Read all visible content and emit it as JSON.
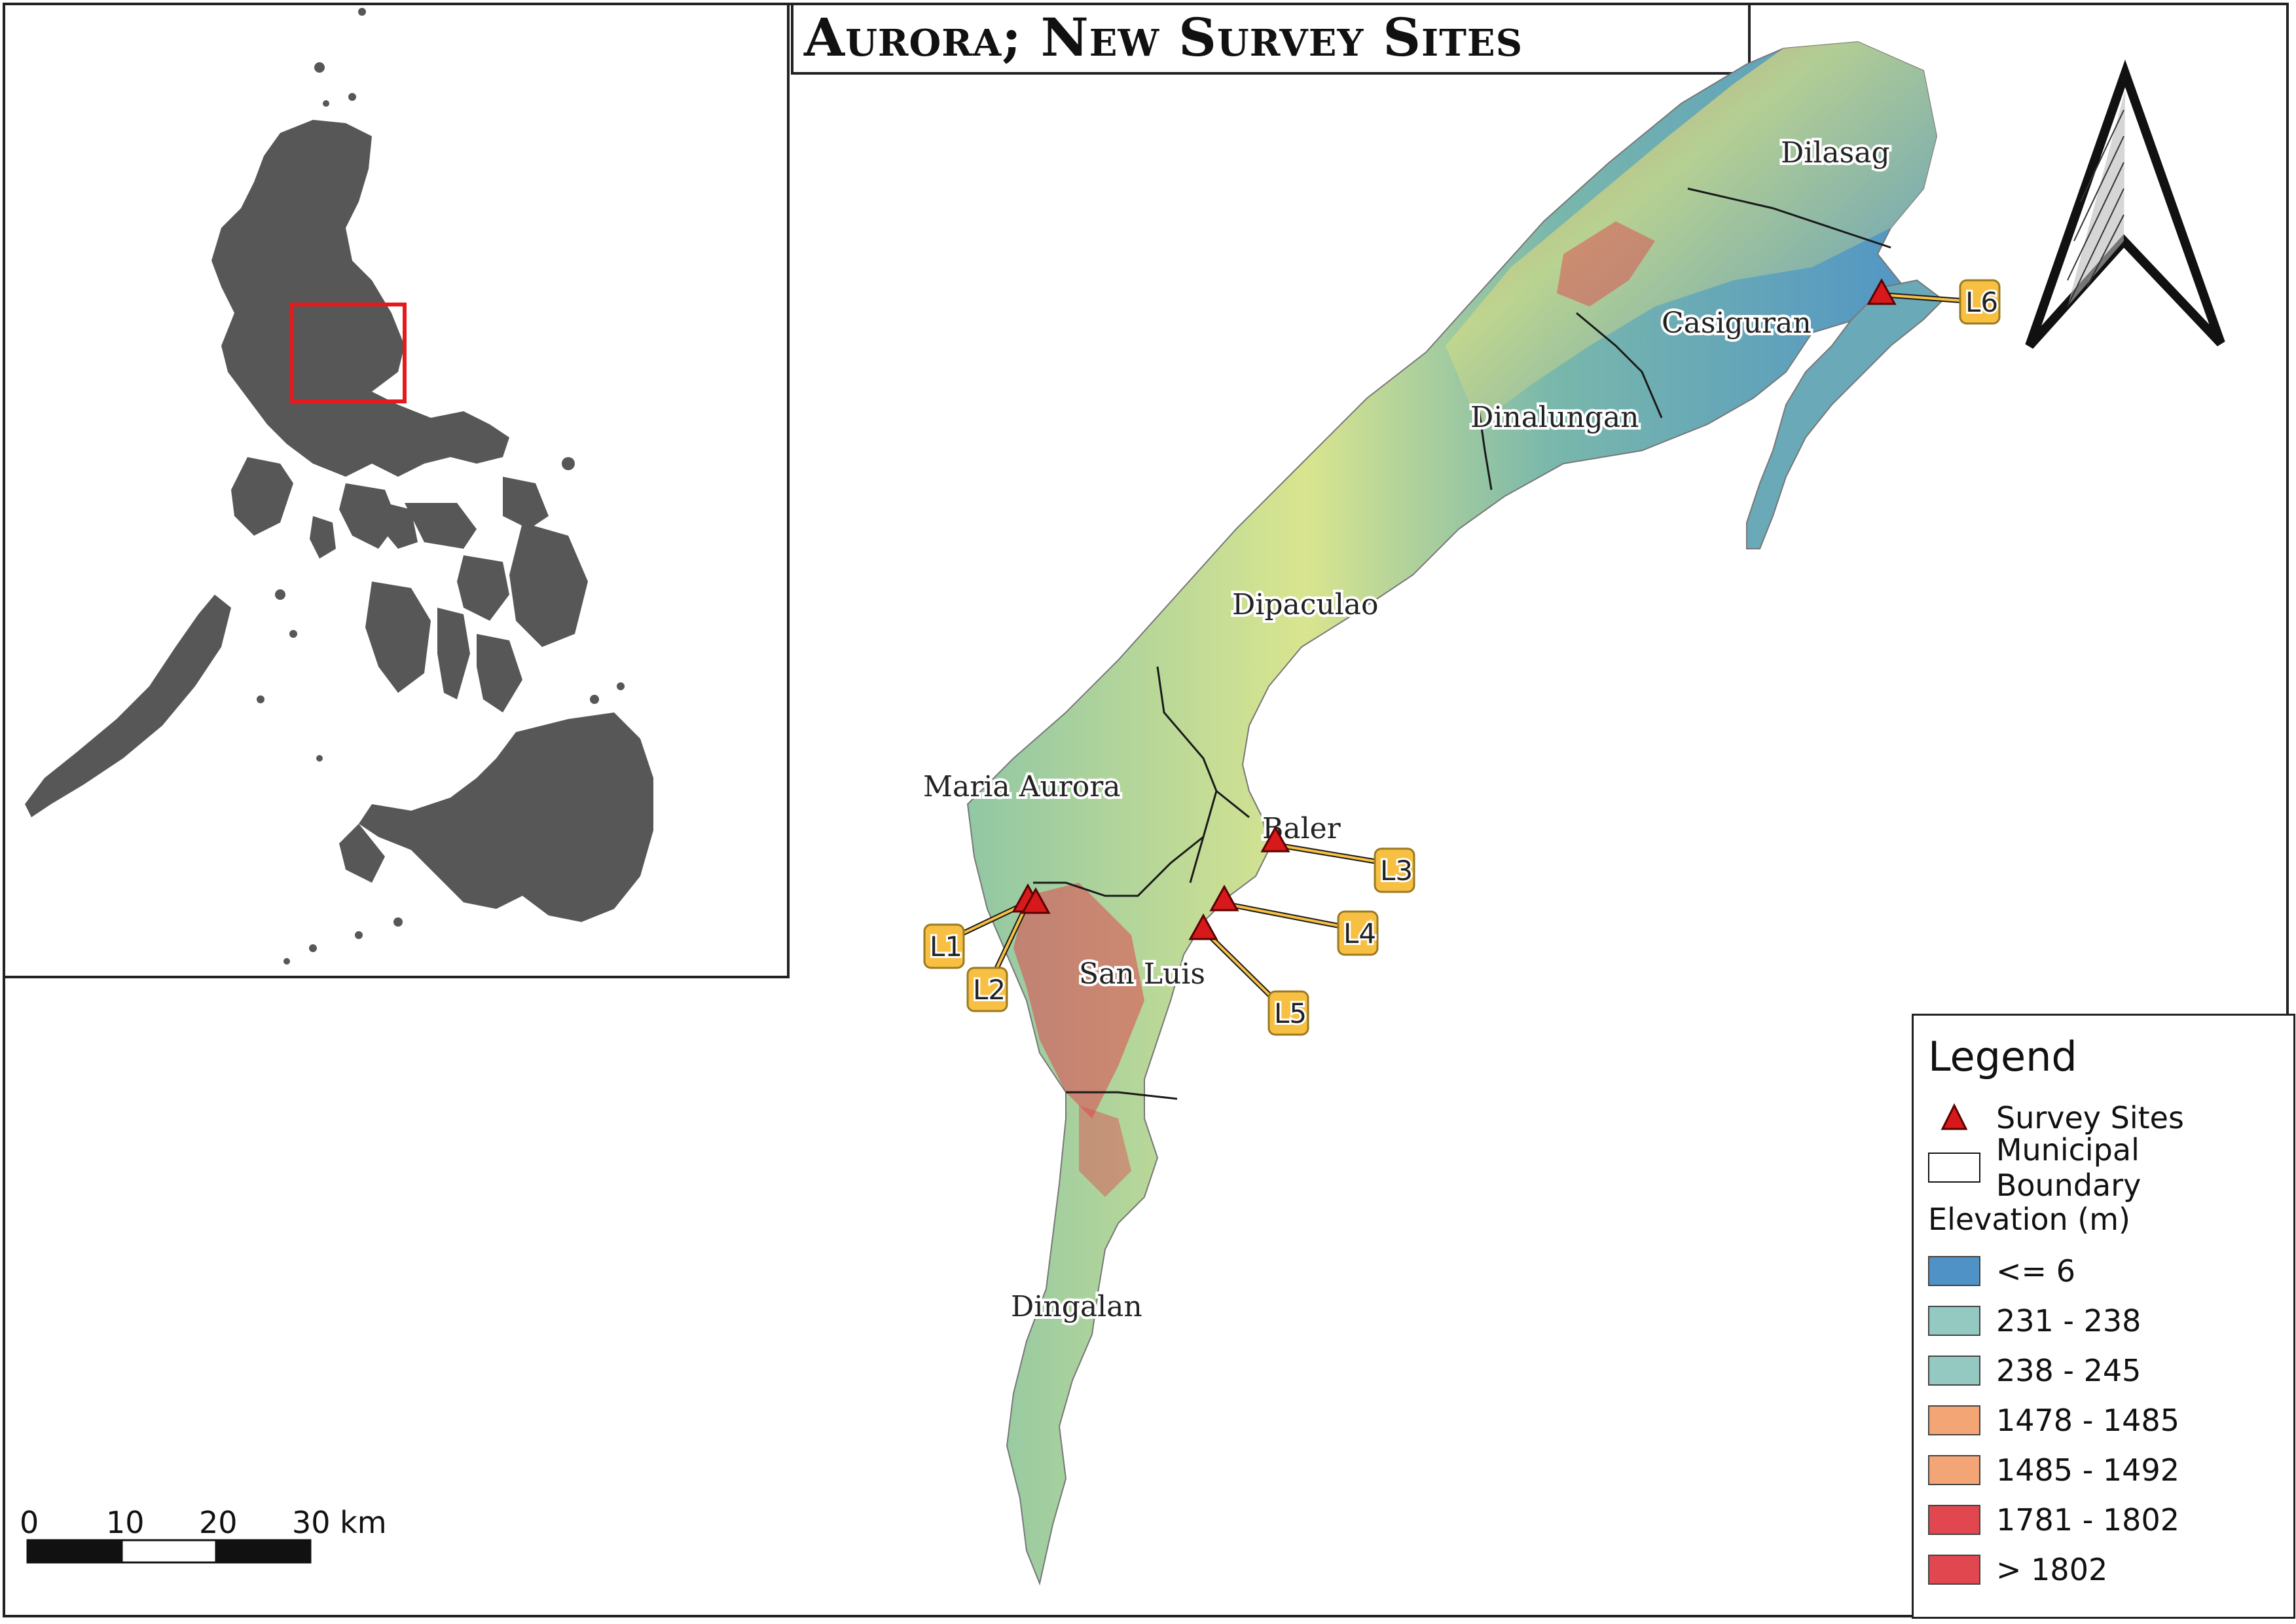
{
  "title": "Aurora; New Survey Sites",
  "municipalities": [
    {
      "id": "dilasag",
      "name": "Dilasag"
    },
    {
      "id": "casiguran",
      "name": "Casiguran"
    },
    {
      "id": "dinalungan",
      "name": "Dinalungan"
    },
    {
      "id": "dipaculao",
      "name": "Dipaculao"
    },
    {
      "id": "maria-aurora",
      "name": "Maria Aurora"
    },
    {
      "id": "baler",
      "name": "Baler"
    },
    {
      "id": "san-luis",
      "name": "San Luis"
    },
    {
      "id": "dingalan",
      "name": "Dingalan"
    }
  ],
  "survey_sites": [
    {
      "id": "L1",
      "label": "L1"
    },
    {
      "id": "L2",
      "label": "L2"
    },
    {
      "id": "L3",
      "label": "L3"
    },
    {
      "id": "L4",
      "label": "L4"
    },
    {
      "id": "L5",
      "label": "L5"
    },
    {
      "id": "L6",
      "label": "L6"
    }
  ],
  "legend": {
    "title": "Legend",
    "survey_sites": "Survey Sites",
    "municipal_boundary": "Municipal Boundary",
    "elevation_title": "Elevation (m)",
    "elevation_classes": [
      {
        "label": "<= 6",
        "color": "#4f93c6"
      },
      {
        "label": "231 - 238",
        "color": "#93c9c1"
      },
      {
        "label": "238 - 245",
        "color": "#93c9c1"
      },
      {
        "label": "1478 - 1485",
        "color": "#f3a576"
      },
      {
        "label": "1485 - 1492",
        "color": "#f3a576"
      },
      {
        "label": "1781 - 1802",
        "color": "#e0474e"
      },
      {
        "label": "> 1802",
        "color": "#e0474e"
      }
    ]
  },
  "scale_bar": {
    "labels": [
      "0",
      "10",
      "20",
      "30 km"
    ]
  },
  "colors": {
    "inset_land": "#575757",
    "inset_highlight": "#e41a1c",
    "site_marker": "#d7191c",
    "site_label_fill": "#f7c043"
  },
  "north_arrow_icon": "north-arrow-icon"
}
